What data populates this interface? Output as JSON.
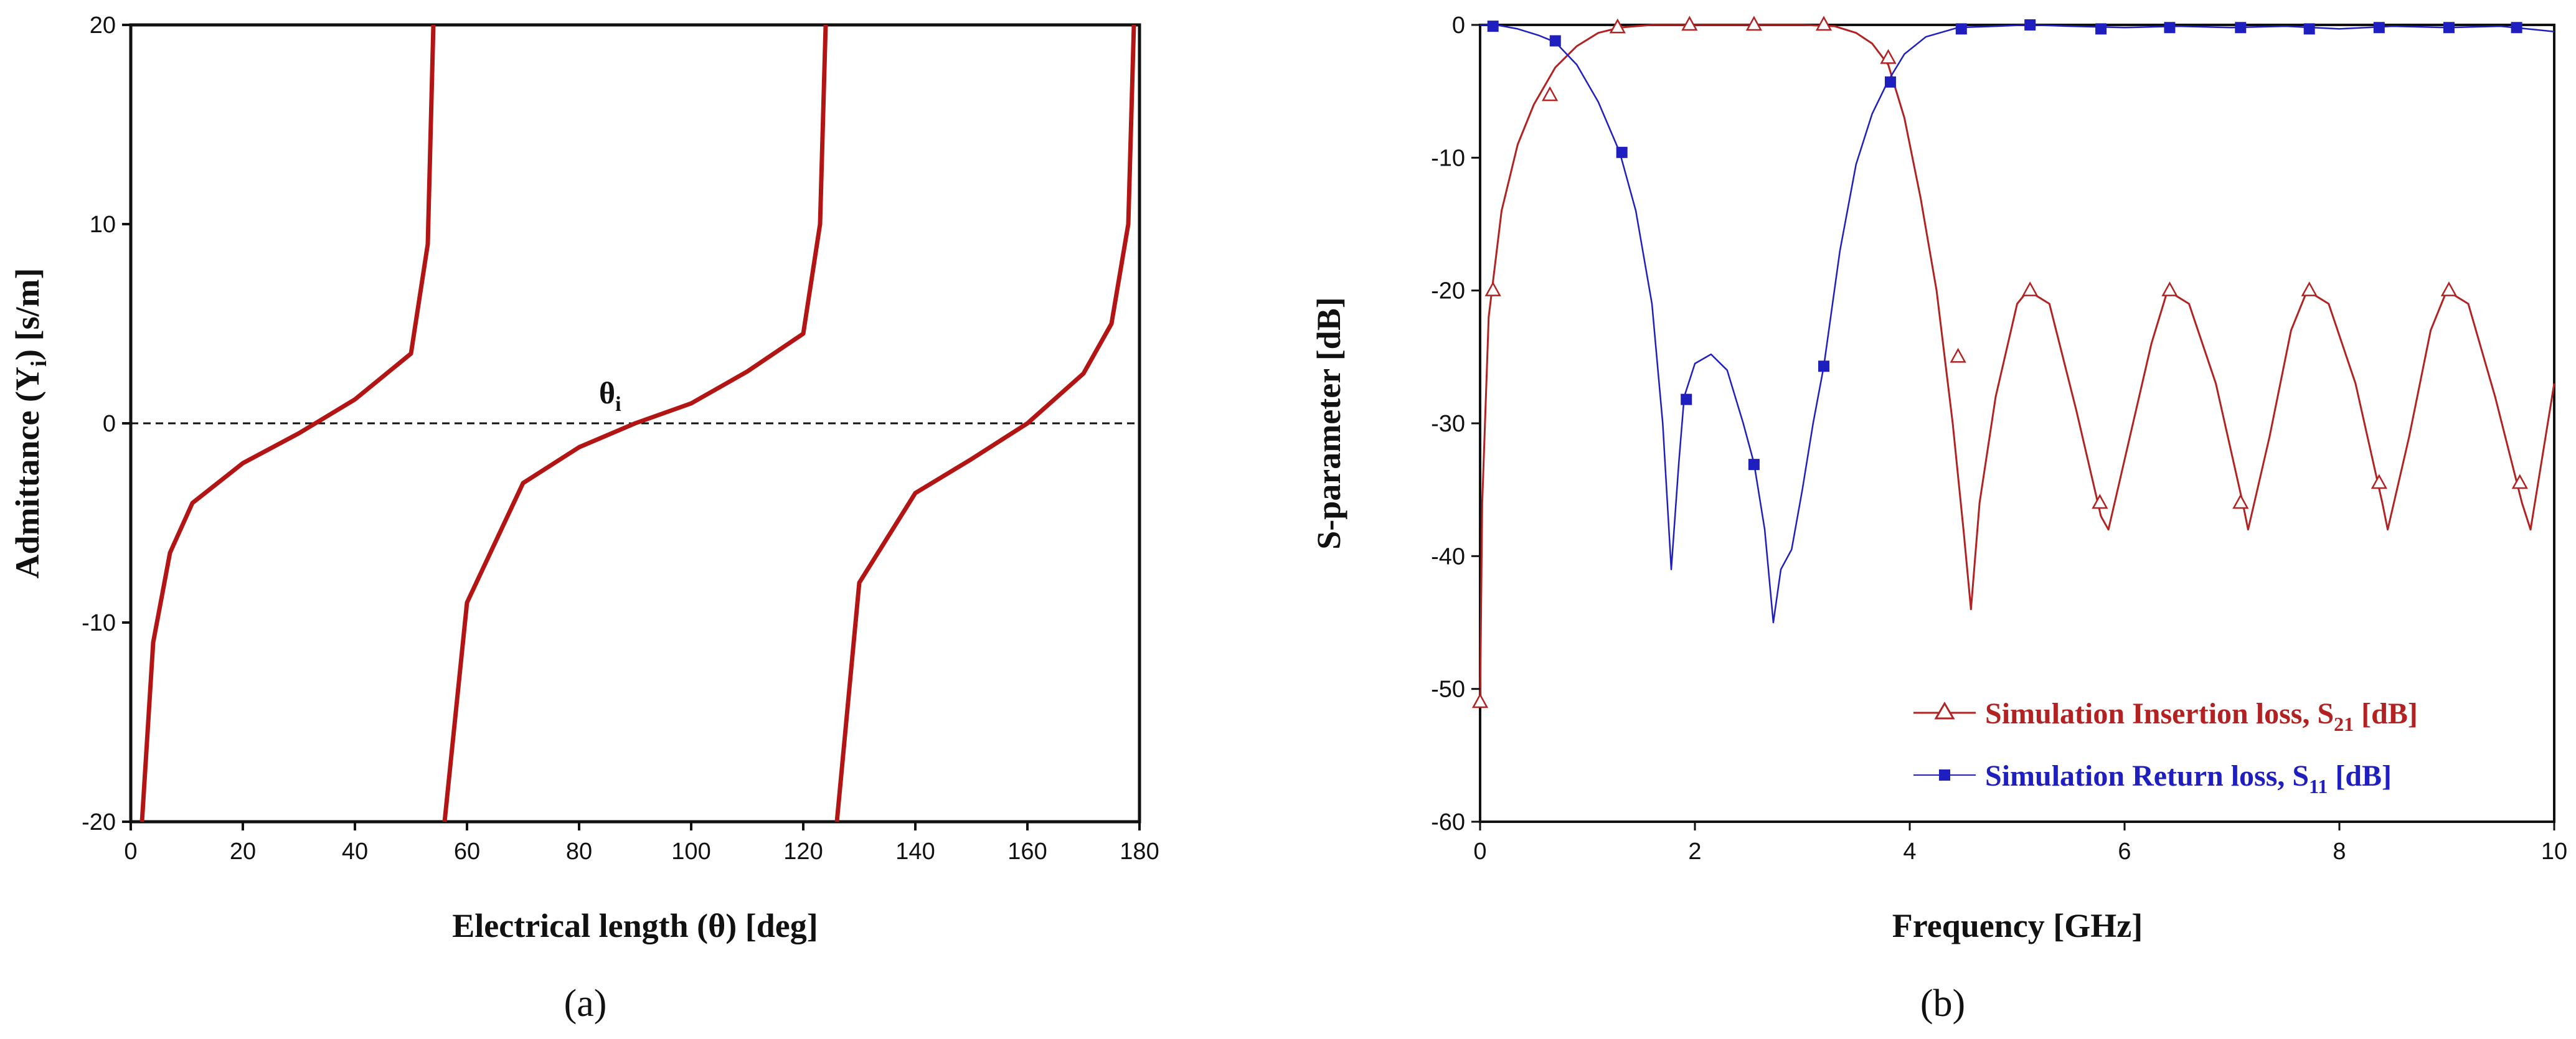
{
  "chart_data": [
    {
      "type": "line",
      "panel_label": "(a)",
      "xlabel": "Electrical length (θ) [deg]",
      "ylabel": "Admittance (Y",
      "ylabel_sub": "i",
      "ylabel_suffix": ") [s/m]",
      "xlim": [
        0,
        180
      ],
      "ylim": [
        -20,
        20
      ],
      "xticks": [
        "0",
        "20",
        "40",
        "60",
        "80",
        "100",
        "120",
        "140",
        "160",
        "180"
      ],
      "yticks": [
        "20",
        "10",
        "0",
        "-10",
        "-20"
      ],
      "annotation": "θ",
      "annotation_sub": "i",
      "reference_line": 0,
      "color": "#b31515",
      "series": [
        {
          "name": "Admittance",
          "x": [
            2,
            4,
            7,
            11,
            20,
            30,
            40,
            50,
            53,
            54,
            56,
            60,
            70,
            80,
            90,
            100,
            110,
            120,
            123,
            124,
            126,
            130,
            140,
            150,
            160,
            170,
            175,
            178,
            179
          ],
          "y": [
            -20,
            -11,
            -6.5,
            -4,
            -2,
            -0.5,
            1.2,
            3.5,
            9,
            20,
            -20,
            -9,
            -3,
            -1.2,
            0,
            1.0,
            2.6,
            4.5,
            10,
            20,
            -20,
            -8,
            -3.5,
            -1.8,
            0,
            2.5,
            5,
            10,
            20
          ]
        }
      ]
    },
    {
      "type": "line",
      "panel_label": "(b)",
      "xlabel": "Frequency [GHz]",
      "ylabel": "S-parameter [dB]",
      "xlim": [
        0,
        10
      ],
      "ylim": [
        -60,
        0
      ],
      "xticks": [
        "0",
        "2",
        "4",
        "6",
        "8",
        "10"
      ],
      "yticks": [
        "0",
        "-10",
        "-20",
        "-30",
        "-40",
        "-50",
        "-60"
      ],
      "legend_position": "bottom-right",
      "series": [
        {
          "name": "Simulation Insertion loss, S",
          "name_sub": "21",
          "name_suffix": " [dB]",
          "color": "#b22222",
          "marker": "triangle",
          "x": [
            0,
            0.02,
            0.08,
            0.2,
            0.35,
            0.5,
            0.7,
            0.9,
            1.1,
            1.3,
            1.6,
            2.0,
            2.5,
            3.0,
            3.3,
            3.5,
            3.65,
            3.8,
            3.95,
            4.1,
            4.25,
            4.4,
            4.5,
            4.57,
            4.65,
            4.8,
            5.0,
            5.1,
            5.3,
            5.55,
            5.78,
            5.85,
            6.05,
            6.25,
            6.4,
            6.6,
            6.85,
            7.1,
            7.15,
            7.35,
            7.55,
            7.7,
            7.9,
            8.15,
            8.4,
            8.45,
            8.65,
            8.85,
            9.0,
            9.2,
            9.45,
            9.7,
            9.78,
            10.0
          ],
          "y": [
            -51,
            -36,
            -22,
            -14,
            -9,
            -6,
            -3.2,
            -1.6,
            -0.6,
            -0.2,
            0,
            0,
            0,
            0,
            -0.1,
            -0.6,
            -1.4,
            -3,
            -7,
            -13,
            -20,
            -30,
            -38,
            -44,
            -36,
            -28,
            -21,
            -20,
            -21,
            -29,
            -37,
            -38,
            -31,
            -24,
            -20,
            -21,
            -27,
            -36,
            -38,
            -31,
            -23,
            -20,
            -21,
            -27,
            -36,
            -38,
            -31,
            -23,
            -20,
            -21,
            -28,
            -36,
            -38,
            -27
          ],
          "marker_x": [
            0,
            0.12,
            0.65,
            1.28,
            1.95,
            2.55,
            3.2,
            3.8,
            4.45,
            5.12,
            5.77,
            6.42,
            7.08,
            7.72,
            8.37,
            9.02,
            9.68
          ],
          "marker_y": [
            -51,
            -20,
            -5.3,
            -0.2,
            0,
            0,
            0,
            -2.5,
            -25,
            -20,
            -36,
            -20,
            -36,
            -20,
            -34.5,
            -20,
            -34.5
          ]
        },
        {
          "name": "Simulation Return loss, S",
          "name_sub": "11",
          "name_suffix": " [dB]",
          "color": "#1f1fc0",
          "marker": "square",
          "x": [
            0,
            0.15,
            0.35,
            0.55,
            0.7,
            0.9,
            1.1,
            1.3,
            1.45,
            1.6,
            1.7,
            1.78,
            1.85,
            1.9,
            2.0,
            2.15,
            2.3,
            2.45,
            2.55,
            2.65,
            2.73,
            2.8,
            2.9,
            3.0,
            3.1,
            3.2,
            3.35,
            3.5,
            3.65,
            3.8,
            3.95,
            4.15,
            4.45,
            4.8,
            5.1,
            5.5,
            6.0,
            6.5,
            7.0,
            7.5,
            8.0,
            8.5,
            9.0,
            9.5,
            10.0
          ],
          "y": [
            0,
            0,
            -0.3,
            -0.8,
            -1.3,
            -3,
            -5.8,
            -9.6,
            -14,
            -21,
            -30,
            -41,
            -33,
            -28,
            -25.5,
            -24.8,
            -26,
            -30,
            -33,
            -38,
            -45,
            -41,
            -39.5,
            -35,
            -30,
            -25.7,
            -17,
            -10.5,
            -6.7,
            -4.2,
            -2.2,
            -0.9,
            -0.2,
            -0.1,
            0,
            -0.1,
            -0.2,
            -0.1,
            -0.2,
            -0.1,
            -0.3,
            -0.1,
            -0.2,
            -0.1,
            -0.5
          ],
          "marker_x": [
            0.12,
            0.7,
            1.32,
            1.92,
            2.55,
            3.2,
            3.82,
            4.48,
            5.12,
            5.78,
            6.42,
            7.08,
            7.72,
            8.37,
            9.02,
            9.65
          ],
          "marker_y": [
            -0.1,
            -1.2,
            -9.6,
            -28.2,
            -33.1,
            -25.7,
            -4.3,
            -0.3,
            0,
            -0.3,
            -0.2,
            -0.2,
            -0.3,
            -0.2,
            -0.2,
            -0.2
          ]
        }
      ]
    }
  ]
}
